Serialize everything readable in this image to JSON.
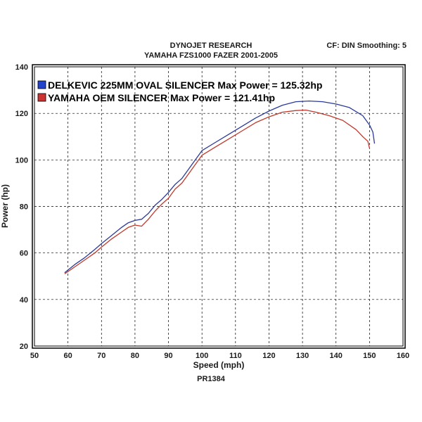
{
  "header": {
    "title": "DYNOJET RESEARCH",
    "subtitle": "YAMAHA FZS1000 FAZER 2001-2005",
    "settings": "CF: DIN  Smoothing: 5"
  },
  "footer": {
    "run_id": "PR1384"
  },
  "colors": {
    "series1": "#2b3a9a",
    "series2": "#c0392b",
    "grid": "#000000",
    "frame": "#000000"
  },
  "chart_data": {
    "type": "line",
    "xlabel": "Speed (mph)",
    "ylabel": "Power (hp)",
    "xlim": [
      50,
      160
    ],
    "ylim": [
      20,
      140
    ],
    "xticks": [
      50,
      60,
      70,
      80,
      90,
      100,
      110,
      120,
      130,
      140,
      150,
      160
    ],
    "yticks": [
      20,
      40,
      60,
      80,
      100,
      120,
      140
    ],
    "grid": "dashed",
    "legend_position": "top-left",
    "series": [
      {
        "name": "DELKEVIC 225MM OVAL SILENCER Max Power = 125.32hp",
        "color": "blue",
        "x": [
          59,
          62,
          65,
          68,
          70,
          73,
          76,
          78,
          80,
          82,
          84,
          86,
          88,
          90,
          92,
          94,
          96,
          98,
          100,
          104,
          108,
          112,
          116,
          120,
          124,
          128,
          132,
          136,
          140,
          144,
          148,
          150,
          151,
          151.5
        ],
        "y": [
          51.5,
          55,
          58,
          61.5,
          64,
          67.5,
          71,
          73,
          74,
          74.5,
          77,
          80.5,
          83,
          86,
          89.5,
          92,
          96,
          100,
          104,
          107.5,
          111,
          114.5,
          118,
          121,
          123.5,
          125,
          125.3,
          125,
          124,
          122.5,
          119,
          115,
          112,
          107
        ]
      },
      {
        "name": "YAMAHA OEM SILENCER Max Power = 121.41hp",
        "color": "red",
        "x": [
          59,
          62,
          65,
          68,
          70,
          73,
          76,
          78,
          80,
          82,
          84,
          86,
          88,
          90,
          92,
          94,
          96,
          98,
          100,
          104,
          108,
          112,
          116,
          120,
          124,
          128,
          131,
          134,
          138,
          142,
          146,
          148,
          149.5,
          150
        ],
        "y": [
          51,
          54,
          57,
          60,
          62.5,
          66,
          69,
          71,
          72,
          71.5,
          74.5,
          78,
          81,
          83.5,
          87.5,
          90,
          94,
          98,
          102,
          105.5,
          109,
          112.5,
          116,
          118.5,
          120.5,
          121.2,
          121.4,
          120.5,
          119,
          117,
          113,
          110,
          108,
          105
        ]
      }
    ]
  }
}
